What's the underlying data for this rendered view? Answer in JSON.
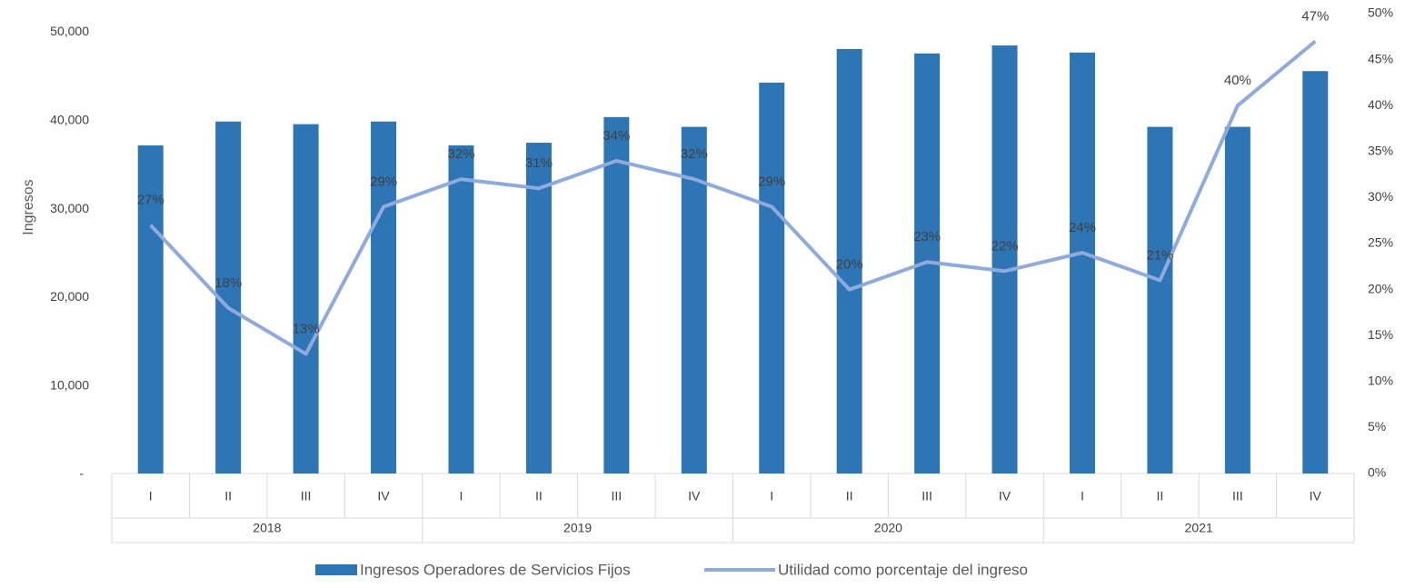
{
  "chart_data": {
    "type": "bar_line",
    "categories": [
      "I",
      "II",
      "III",
      "IV",
      "I",
      "II",
      "III",
      "IV",
      "I",
      "II",
      "III",
      "IV",
      "I",
      "II",
      "III",
      "IV"
    ],
    "groups": [
      "2018",
      "2019",
      "2020",
      "2021"
    ],
    "ylabel": "Ingresos",
    "ylim": [
      0,
      52000
    ],
    "yticks": [
      {
        "value": 0,
        "label": "-"
      },
      {
        "value": 10000,
        "label": "10,000"
      },
      {
        "value": 20000,
        "label": "20,000"
      },
      {
        "value": 30000,
        "label": "30,000"
      },
      {
        "value": 40000,
        "label": "40,000"
      },
      {
        "value": 50000,
        "label": "50,000"
      }
    ],
    "y2lim": [
      0,
      50
    ],
    "y2ticks": [
      {
        "value": 0,
        "label": "0%"
      },
      {
        "value": 5,
        "label": "5%"
      },
      {
        "value": 10,
        "label": "10%"
      },
      {
        "value": 15,
        "label": "15%"
      },
      {
        "value": 20,
        "label": "20%"
      },
      {
        "value": 25,
        "label": "25%"
      },
      {
        "value": 30,
        "label": "30%"
      },
      {
        "value": 35,
        "label": "35%"
      },
      {
        "value": 40,
        "label": "40%"
      },
      {
        "value": 45,
        "label": "45%"
      },
      {
        "value": 50,
        "label": "50%"
      }
    ],
    "series": [
      {
        "name": "Ingresos Operadores de Servicios Fijos",
        "color": "#2e75b6",
        "kind": "bar",
        "values": [
          37100,
          39800,
          39500,
          39800,
          37100,
          37400,
          40300,
          39200,
          44200,
          48000,
          47500,
          48400,
          47600,
          39200,
          39200,
          45500
        ]
      },
      {
        "name": "Utilidad como porcentaje del ingreso",
        "color": "#8faadc",
        "kind": "line",
        "axis": "y2",
        "values": [
          27,
          18,
          13,
          29,
          32,
          31,
          34,
          32,
          29,
          20,
          23,
          22,
          24,
          21,
          40,
          47
        ],
        "value_labels": [
          "27%",
          "18%",
          "13%",
          "29%",
          "32%",
          "31%",
          "34%",
          "32%",
          "29%",
          "20%",
          "23%",
          "22%",
          "24%",
          "21%",
          "40%",
          "47%"
        ]
      }
    ],
    "legend": "bottom"
  }
}
